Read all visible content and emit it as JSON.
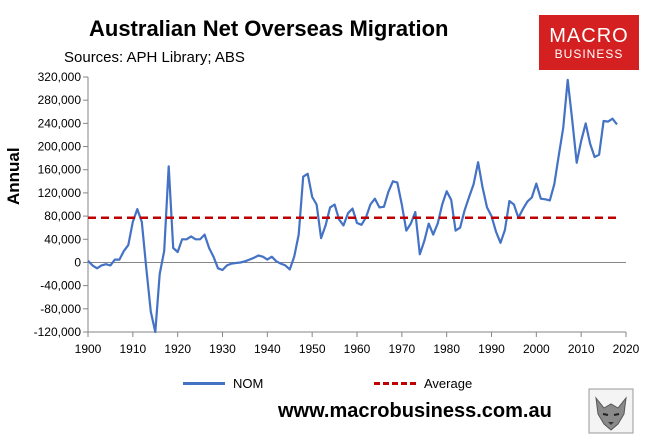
{
  "header": {
    "title": "Australian Net Overseas Migration",
    "subtitle": "Sources: APH Library; ABS"
  },
  "logo": {
    "line1": "MACRO",
    "line2": "BUSINESS"
  },
  "footer": {
    "url": "www.macrobusiness.com.au",
    "logo_icon": "wolf-icon"
  },
  "chart_data": {
    "type": "line",
    "ylabel": "Annual",
    "xlim": [
      1900,
      2020
    ],
    "ylim": [
      -120000,
      320000
    ],
    "y_ticks": [
      -120000,
      -80000,
      -40000,
      0,
      40000,
      80000,
      120000,
      160000,
      200000,
      240000,
      280000,
      320000
    ],
    "y_tick_labels": [
      "-120,000",
      "-80,000",
      "-40,000",
      "0",
      "40,000",
      "80,000",
      "120,000",
      "160,000",
      "200,000",
      "240,000",
      "280,000",
      "320,000"
    ],
    "x_ticks": [
      1900,
      1910,
      1920,
      1930,
      1940,
      1950,
      1960,
      1970,
      1980,
      1990,
      2000,
      2010,
      2020
    ],
    "x_tick_labels": [
      "1900",
      "1910",
      "1920",
      "1930",
      "1940",
      "1950",
      "1960",
      "1970",
      "1980",
      "1990",
      "2000",
      "2010",
      "2020"
    ],
    "grid": false,
    "legend_position": "bottom",
    "series": [
      {
        "name": "NOM",
        "color": "#4472c4",
        "style": "solid",
        "x": [
          1900,
          1901,
          1902,
          1903,
          1904,
          1905,
          1906,
          1907,
          1908,
          1909,
          1910,
          1911,
          1912,
          1913,
          1914,
          1915,
          1916,
          1917,
          1918,
          1919,
          1920,
          1921,
          1922,
          1923,
          1924,
          1925,
          1926,
          1927,
          1928,
          1929,
          1930,
          1931,
          1932,
          1933,
          1934,
          1935,
          1936,
          1937,
          1938,
          1939,
          1940,
          1941,
          1942,
          1943,
          1944,
          1945,
          1946,
          1947,
          1948,
          1949,
          1950,
          1951,
          1952,
          1953,
          1954,
          1955,
          1956,
          1957,
          1958,
          1959,
          1960,
          1961,
          1962,
          1963,
          1964,
          1965,
          1966,
          1967,
          1968,
          1969,
          1970,
          1971,
          1972,
          1973,
          1974,
          1975,
          1976,
          1977,
          1978,
          1979,
          1980,
          1981,
          1982,
          1983,
          1984,
          1985,
          1986,
          1987,
          1988,
          1989,
          1990,
          1991,
          1992,
          1993,
          1994,
          1995,
          1996,
          1997,
          1998,
          1999,
          2000,
          2001,
          2002,
          2003,
          2004,
          2005,
          2006,
          2007,
          2008,
          2009,
          2010,
          2011,
          2012,
          2013,
          2014,
          2015,
          2016,
          2017,
          2018
        ],
        "y": [
          3000,
          -5000,
          -10000,
          -5000,
          -3000,
          -5000,
          5000,
          5000,
          20000,
          30000,
          70000,
          92000,
          70000,
          -10000,
          -85000,
          -120000,
          -20000,
          20000,
          166000,
          25000,
          18000,
          40000,
          40000,
          45000,
          40000,
          40000,
          48000,
          25000,
          10000,
          -10000,
          -13000,
          -5000,
          -2000,
          -1000,
          0,
          2000,
          5000,
          8000,
          12000,
          10000,
          5000,
          10000,
          2000,
          -2000,
          -5000,
          -12000,
          10000,
          48000,
          148000,
          153000,
          113000,
          100000,
          42000,
          64000,
          95000,
          100000,
          74000,
          64000,
          85000,
          93000,
          68000,
          65000,
          78000,
          100000,
          110000,
          95000,
          96000,
          122000,
          140000,
          138000,
          100000,
          55000,
          67000,
          87000,
          14000,
          37000,
          67000,
          48000,
          67000,
          100000,
          123000,
          108000,
          55000,
          60000,
          90000,
          113000,
          135000,
          173000,
          130000,
          95000,
          80000,
          53000,
          34000,
          56000,
          106000,
          100000,
          77000,
          92000,
          105000,
          112000,
          136000,
          110000,
          109000,
          107000,
          135000,
          185000,
          232000,
          315000,
          246000,
          172000,
          210000,
          240000,
          205000,
          182000,
          186000,
          244000,
          243000,
          248000,
          238000
        ]
      },
      {
        "name": "Average",
        "color": "#c00000",
        "style": "dashed",
        "x": [
          1900,
          2018
        ],
        "y": [
          77000,
          77000
        ]
      }
    ]
  }
}
